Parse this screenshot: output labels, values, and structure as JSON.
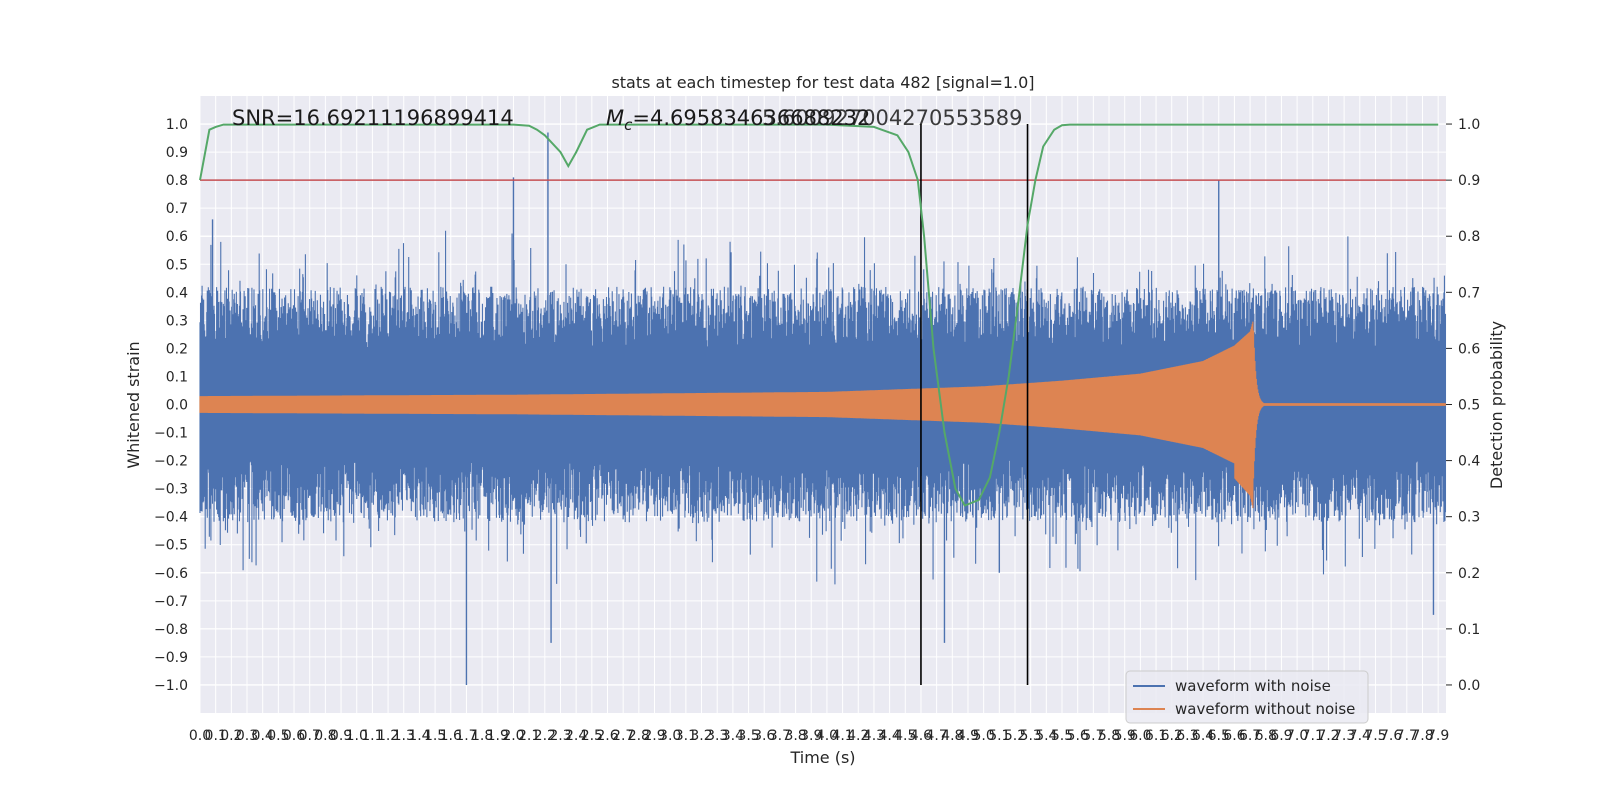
{
  "chart_data": {
    "type": "line",
    "title": "stats at each timestep for test data 482 [signal=1.0]",
    "xlabel": "Time (s)",
    "ylabel": "Whitened strain",
    "y2label": "Detection probability",
    "xlim": [
      0.0,
      7.95
    ],
    "ylim": [
      -1.1,
      1.1
    ],
    "y2lim": [
      -0.05,
      1.05
    ],
    "grid": true,
    "x_ticks": [
      "0.0",
      "0.1",
      "0.2",
      "0.3",
      "0.4",
      "0.5",
      "0.6",
      "0.7",
      "0.8",
      "0.9",
      "1.0",
      "1.1",
      "1.2",
      "1.3",
      "1.4",
      "1.5",
      "1.6",
      "1.7",
      "1.8",
      "1.9",
      "2.0",
      "2.1",
      "2.2",
      "2.3",
      "2.4",
      "2.5",
      "2.6",
      "2.7",
      "2.8",
      "2.9",
      "3.0",
      "3.1",
      "3.2",
      "3.3",
      "3.4",
      "3.5",
      "3.6",
      "3.7",
      "3.8",
      "3.9",
      "4.0",
      "4.1",
      "4.2",
      "4.3",
      "4.4",
      "4.5",
      "4.6",
      "4.7",
      "4.8",
      "4.9",
      "5.0",
      "5.1",
      "5.2",
      "5.3",
      "5.4",
      "5.5",
      "5.6",
      "5.7",
      "5.8",
      "5.9",
      "6.0",
      "6.1",
      "6.2",
      "6.3",
      "6.4",
      "6.5",
      "6.6",
      "6.7",
      "6.8",
      "6.9",
      "7.0",
      "7.1",
      "7.2",
      "7.3",
      "7.4",
      "7.5",
      "7.6",
      "7.7",
      "7.8",
      "7.9"
    ],
    "y_ticks": [
      "1.0",
      "0.9",
      "0.8",
      "0.7",
      "0.6",
      "0.5",
      "0.4",
      "0.3",
      "0.2",
      "0.1",
      "0.0",
      "−0.1",
      "−0.2",
      "−0.3",
      "−0.4",
      "−0.5",
      "−0.6",
      "−0.7",
      "−0.8",
      "−0.9",
      "−1.0"
    ],
    "y2_ticks": [
      "1.0",
      "0.9",
      "0.8",
      "0.7",
      "0.6",
      "0.5",
      "0.4",
      "0.3",
      "0.2",
      "0.1",
      "0.0"
    ],
    "annotations": {
      "snr": "SNR=16.69211196899414",
      "mc_prefix": "M",
      "mc_sub": "c",
      "mc_value": "=4.695834636688232",
      "overlap_value": "5.600927004270553589"
    },
    "threshold": {
      "y2": 0.9
    },
    "vertical_lines": [
      4.6,
      5.28
    ],
    "series": [
      {
        "name": "waveform with noise",
        "color": "#4c72b0",
        "axis": "left",
        "description": "whitened noisy strain, envelope approx ±0.4 with spikes up to ±1.0",
        "spikes": [
          [
            1.7,
            -1.0
          ],
          [
            2.22,
            0.97
          ],
          [
            2.24,
            -0.85
          ],
          [
            2.0,
            0.81
          ],
          [
            4.75,
            -0.85
          ],
          [
            6.5,
            0.8
          ],
          [
            5.1,
            -0.6
          ],
          [
            7.87,
            -0.75
          ],
          [
            0.08,
            0.66
          ]
        ]
      },
      {
        "name": "waveform without noise",
        "color": "#dd8452",
        "axis": "left",
        "description": "chirp signal growing from ±0.03 at t=0 to peak ~0.27/-0.35 at merger (t≈6.72s), then ringdown",
        "amplitude_points": [
          [
            0.0,
            0.03
          ],
          [
            2.0,
            0.035
          ],
          [
            4.0,
            0.045
          ],
          [
            5.0,
            0.065
          ],
          [
            5.5,
            0.085
          ],
          [
            6.0,
            0.11
          ],
          [
            6.4,
            0.155
          ],
          [
            6.6,
            0.21
          ],
          [
            6.7,
            0.26
          ],
          [
            6.72,
            0.3
          ]
        ]
      },
      {
        "name": "detection probability",
        "color": "#55a868",
        "axis": "right",
        "x": [
          0.0,
          0.06,
          0.1,
          0.15,
          0.2,
          0.5,
          1.0,
          1.5,
          2.0,
          2.1,
          2.15,
          2.2,
          2.3,
          2.35,
          2.4,
          2.47,
          2.55,
          2.7,
          3.0,
          4.0,
          4.3,
          4.45,
          4.52,
          4.58,
          4.62,
          4.68,
          4.75,
          4.82,
          4.88,
          4.97,
          5.04,
          5.1,
          5.16,
          5.22,
          5.28,
          5.33,
          5.38,
          5.45,
          5.5,
          5.55,
          6.0,
          7.0,
          7.9
        ],
        "y": [
          0.9,
          0.99,
          0.995,
          0.999,
          0.999,
          0.999,
          0.999,
          0.999,
          0.999,
          0.997,
          0.99,
          0.98,
          0.95,
          0.925,
          0.95,
          0.99,
          0.999,
          0.999,
          0.999,
          0.999,
          0.995,
          0.98,
          0.95,
          0.9,
          0.8,
          0.6,
          0.45,
          0.35,
          0.32,
          0.33,
          0.37,
          0.45,
          0.55,
          0.68,
          0.82,
          0.9,
          0.96,
          0.99,
          0.998,
          0.999,
          0.999,
          0.999,
          0.999
        ]
      }
    ],
    "legend": {
      "position": "lower right",
      "entries": [
        {
          "label": "waveform with noise",
          "color": "#4c72b0"
        },
        {
          "label": "waveform without noise",
          "color": "#dd8452"
        }
      ]
    }
  }
}
